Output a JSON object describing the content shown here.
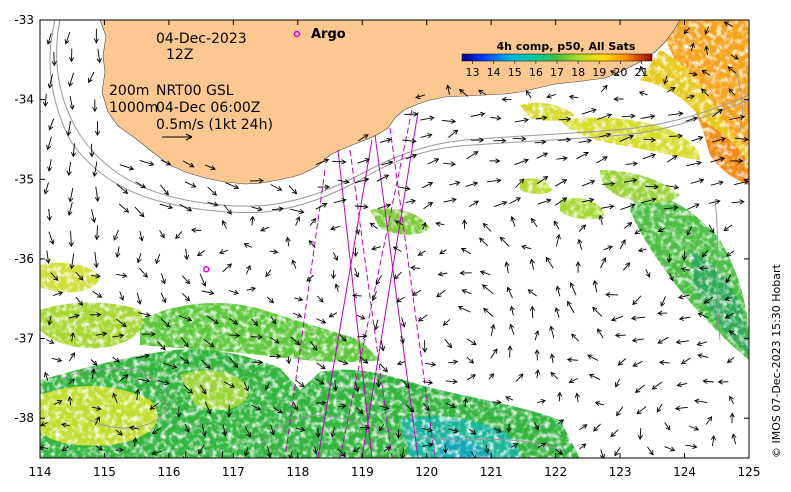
{
  "info": {
    "date": "04-Dec-2023",
    "hour": "12Z",
    "depth_200": "200m",
    "depth_1000": "1000m",
    "product": "NRT00 GSL",
    "product_time": "04-Dec 06:00Z",
    "scale": "0.5m/s (1kt 24h)"
  },
  "legend": {
    "argo_label": "Argo",
    "argo_color": "#e000e0"
  },
  "colorbar": {
    "title": "4h comp, p50, All Sats",
    "ticks": [
      "13",
      "14",
      "15",
      "16",
      "17",
      "18",
      "19",
      "20",
      "21"
    ],
    "range": [
      12.5,
      21.5
    ]
  },
  "copyright": "© IMOS 07-Dec-2023 15:30 Hobart",
  "axes": {
    "x_ticks": [
      "114",
      "115",
      "116",
      "117",
      "118",
      "119",
      "120",
      "121",
      "122",
      "123",
      "124",
      "125"
    ],
    "y_ticks": [
      "-33",
      "-34",
      "-35",
      "-36",
      "-37",
      "-38"
    ],
    "xlim": [
      114,
      125
    ],
    "ylim": [
      -38.5,
      -33
    ]
  },
  "colors": {
    "land": "#fcc88f",
    "ocean_nodata": "#ffffff",
    "track": "#c000c0",
    "contour": "#999999"
  },
  "argo_float": {
    "lon": 116.58,
    "lat": -36.13
  }
}
